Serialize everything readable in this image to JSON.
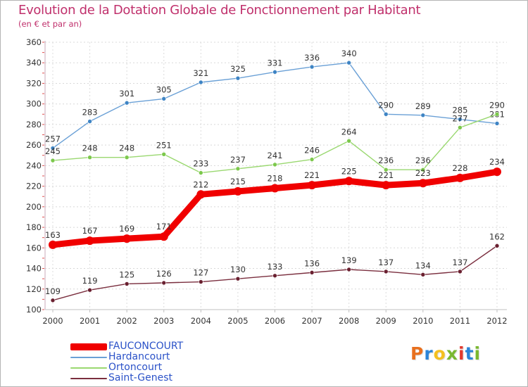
{
  "header": {
    "title": "Evolution de la Dotation Globale de Fonctionnement par Habitant",
    "subtitle": "(en € et par an)"
  },
  "logo": {
    "text": "Proxiti",
    "colors": [
      "#e8701e",
      "#2a84d8",
      "#f4c020",
      "#7ab830",
      "#e23a2e",
      "#2a84d8",
      "#7ab830"
    ]
  },
  "chart_data": {
    "type": "line",
    "title": "Evolution de la Dotation Globale de Fonctionnement par Habitant",
    "subtitle": "(en € et par an)",
    "xlabel": "",
    "ylabel": "",
    "ylim": [
      100,
      360
    ],
    "yticks": [
      100,
      120,
      140,
      160,
      180,
      200,
      220,
      240,
      260,
      280,
      300,
      320,
      340,
      360
    ],
    "grid": true,
    "legend_position": "bottom-left",
    "x": [
      2000,
      2001,
      2002,
      2003,
      2004,
      2005,
      2006,
      2007,
      2008,
      2009,
      2010,
      2011,
      2012
    ],
    "series": [
      {
        "name": "Hardancourt",
        "color": "#6aa0d6",
        "marker_color": "#3e84c4",
        "values": [
          257,
          283,
          301,
          305,
          321,
          325,
          331,
          336,
          340,
          290,
          289,
          285,
          281
        ],
        "labels": [
          "257",
          "283",
          "301",
          "305",
          "321",
          "325",
          "331",
          "336",
          "340",
          "290",
          "289",
          "285",
          "281"
        ]
      },
      {
        "name": "Ortoncourt",
        "color": "#9ad870",
        "marker_color": "#7cc84c",
        "values": [
          245,
          248,
          248,
          251,
          233,
          237,
          241,
          246,
          264,
          236,
          236,
          277,
          290
        ],
        "labels": [
          "245",
          "248",
          "248",
          "251",
          "233",
          "237",
          "241",
          "246",
          "264",
          "236",
          "236",
          "277",
          "290"
        ]
      },
      {
        "name": "Saint-Genest",
        "color": "#7a2e3e",
        "marker_color": "#6a2030",
        "values": [
          109,
          119,
          125,
          126,
          127,
          130,
          133,
          136,
          139,
          137,
          134,
          137,
          162
        ],
        "labels": [
          "109",
          "119",
          "125",
          "126",
          "127",
          "130",
          "133",
          "136",
          "139",
          "137",
          "134",
          "137",
          "162"
        ]
      },
      {
        "name": "FAUCONCOURT",
        "color": "#f00000",
        "marker_color": "#f00000",
        "values": [
          163,
          167,
          169,
          171,
          212,
          215,
          218,
          221,
          225,
          221,
          223,
          228,
          234
        ],
        "labels": [
          "163",
          "167",
          "169",
          "171",
          "212",
          "215",
          "218",
          "221",
          "225",
          "221",
          "223",
          "228",
          "234"
        ]
      }
    ],
    "legend": [
      {
        "name": "FAUCONCOURT",
        "color": "#f00000"
      },
      {
        "name": "Hardancourt",
        "color": "#6aa0d6"
      },
      {
        "name": "Ortoncourt",
        "color": "#9ad870"
      },
      {
        "name": "Saint-Genest",
        "color": "#7a2e3e"
      }
    ]
  }
}
